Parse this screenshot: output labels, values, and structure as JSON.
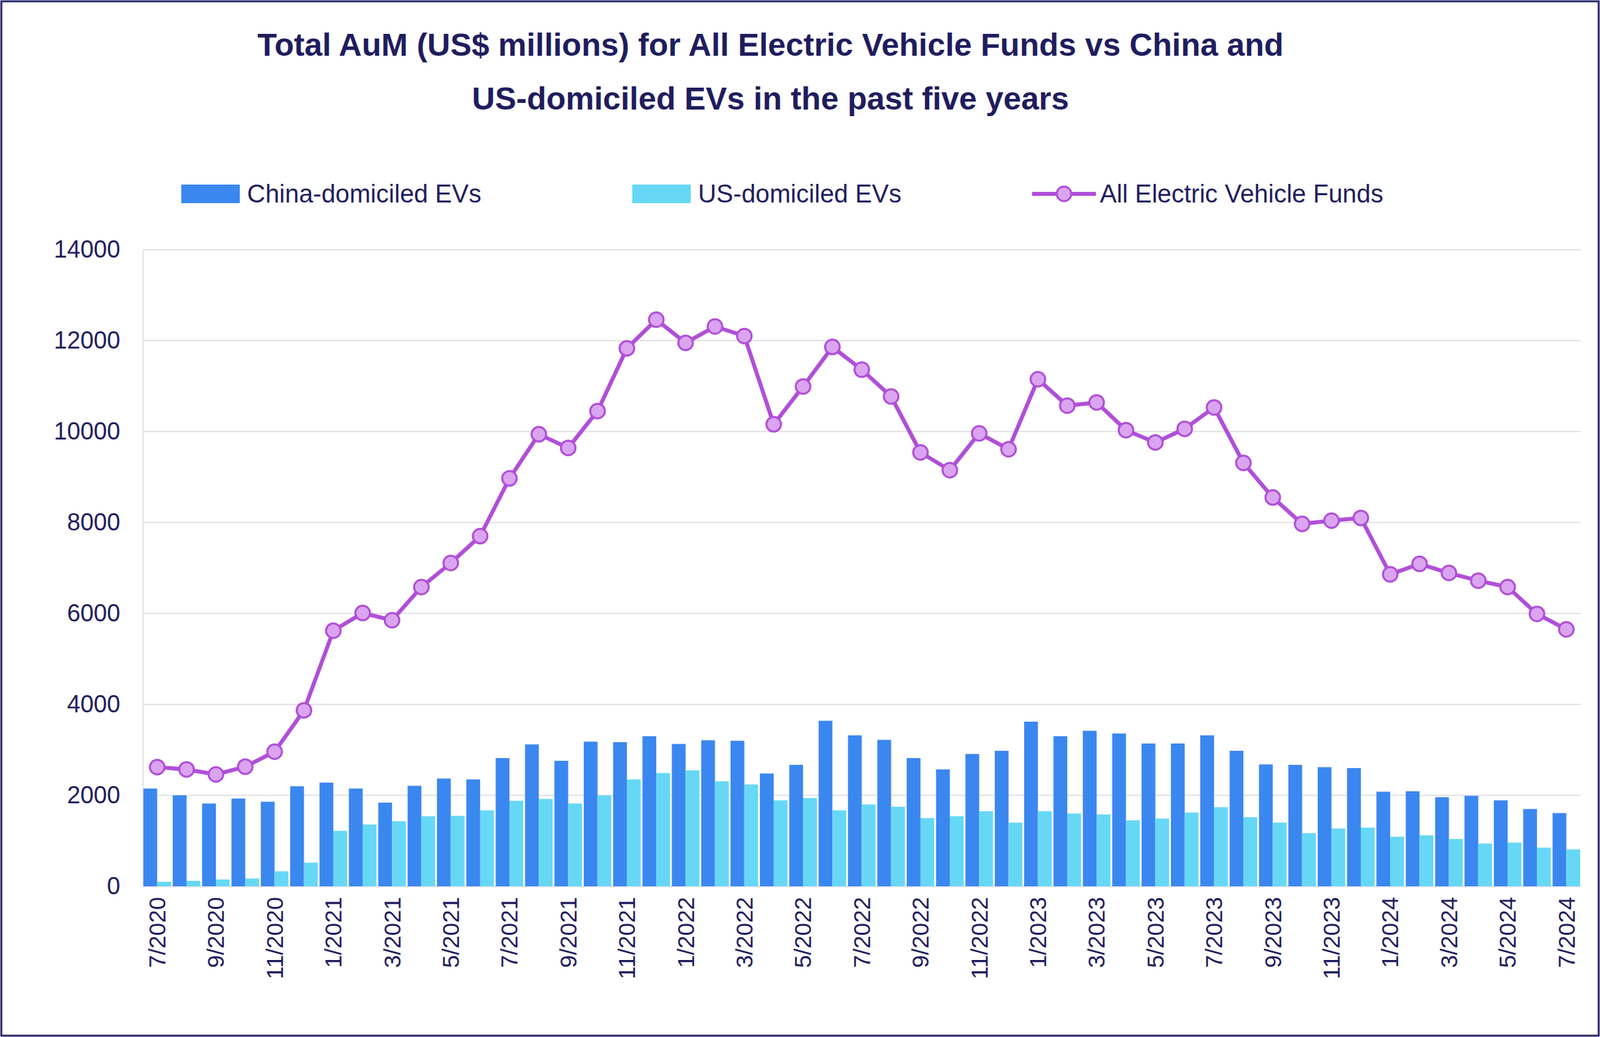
{
  "chart_data": {
    "type": "bar",
    "title": "Total AuM (US$ millions) for All Electric Vehicle Funds vs China and US-domiciled EVs in the past five years",
    "categories": [
      "7/2020",
      null,
      "9/2020",
      null,
      "11/2020",
      null,
      "1/2021",
      null,
      "3/2021",
      null,
      "5/2021",
      null,
      "7/2021",
      null,
      "9/2021",
      null,
      "11/2021",
      null,
      "1/2022",
      null,
      "3/2022",
      null,
      "5/2022",
      null,
      "7/2022",
      null,
      "9/2022",
      null,
      "11/2022",
      null,
      "1/2023",
      null,
      "3/2023",
      null,
      "5/2023",
      null,
      "7/2023",
      null,
      "9/2023",
      null,
      "11/2023",
      null,
      "1/2024",
      null,
      "3/2024",
      null,
      "5/2024",
      null,
      "7/2024"
    ],
    "series": [
      {
        "name": "China-domiciled EVs",
        "type": "bar",
        "color": "#3b87f0",
        "values": [
          2150,
          2000,
          1820,
          1930,
          1860,
          2200,
          2280,
          2150,
          1840,
          2210,
          2370,
          2350,
          2820,
          3120,
          2760,
          3180,
          3170,
          3300,
          3130,
          3210,
          3200,
          2480,
          2670,
          3640,
          3320,
          3220,
          2820,
          2570,
          2910,
          2980,
          3620,
          3300,
          3420,
          3360,
          3140,
          3140,
          3320,
          2980,
          2680,
          2670,
          2620,
          2600,
          2080,
          2090,
          1960,
          1990,
          1890,
          1700,
          1610
        ]
      },
      {
        "name": "US-domiciled EVs",
        "type": "bar",
        "color": "#66d8f6",
        "values": [
          100,
          120,
          150,
          170,
          330,
          520,
          1220,
          1360,
          1430,
          1540,
          1550,
          1670,
          1880,
          1920,
          1820,
          2000,
          2350,
          2490,
          2550,
          2310,
          2240,
          1890,
          1940,
          1670,
          1800,
          1750,
          1500,
          1540,
          1650,
          1400,
          1650,
          1600,
          1580,
          1450,
          1490,
          1620,
          1740,
          1520,
          1400,
          1170,
          1270,
          1290,
          1090,
          1120,
          1040,
          940,
          960,
          850,
          810
        ]
      },
      {
        "name": "All Electric Vehicle Funds",
        "type": "line",
        "color": "#b04fd8",
        "marker": "circle",
        "values": [
          2620,
          2570,
          2460,
          2630,
          2960,
          3870,
          5620,
          6010,
          5850,
          6580,
          7110,
          7700,
          8970,
          9940,
          9640,
          10450,
          11830,
          12460,
          11950,
          12310,
          12100,
          10160,
          10990,
          11860,
          11360,
          10770,
          9540,
          9150,
          9960,
          9610,
          11150,
          10570,
          10640,
          10030,
          9760,
          10060,
          10530,
          9310,
          8550,
          7970,
          8040,
          8100,
          6860,
          7090,
          6890,
          6720,
          6580,
          5990,
          5650
        ]
      }
    ],
    "ylim": [
      0,
      14000
    ],
    "yticks": [
      0,
      2000,
      4000,
      6000,
      8000,
      10000,
      12000,
      14000
    ],
    "grid": true,
    "legend": "top"
  }
}
